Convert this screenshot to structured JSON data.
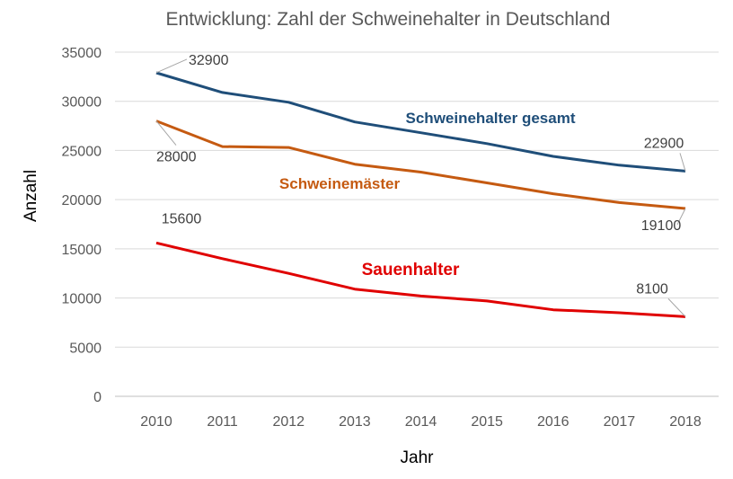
{
  "chart_data": {
    "type": "line",
    "title": "Entwicklung: Zahl der Schweinehalter in Deutschland",
    "xlabel": "Jahr",
    "ylabel": "Anzahl",
    "categories": [
      "2010",
      "2011",
      "2012",
      "2013",
      "2014",
      "2015",
      "2016",
      "2017",
      "2018"
    ],
    "ylim": [
      0,
      35000
    ],
    "yticks": [
      0,
      5000,
      10000,
      15000,
      20000,
      25000,
      30000,
      35000
    ],
    "grid": true,
    "series": [
      {
        "name": "Schweinehalter gesamt",
        "color": "#1F4E79",
        "values": [
          32900,
          30900,
          29900,
          27900,
          26800,
          25700,
          24400,
          23500,
          22900
        ],
        "labels": [
          {
            "index": 0,
            "text": "32900"
          },
          {
            "index": 8,
            "text": "22900"
          }
        ]
      },
      {
        "name": "Schweinemäster",
        "color": "#C55A11",
        "values": [
          28000,
          25400,
          25300,
          23600,
          22800,
          21700,
          20600,
          19700,
          19100
        ],
        "labels": [
          {
            "index": 0,
            "text": "28000"
          },
          {
            "index": 8,
            "text": "19100"
          }
        ]
      },
      {
        "name": "Sauenhalter",
        "color": "#E00000",
        "values": [
          15600,
          14000,
          12500,
          10900,
          10200,
          9700,
          8800,
          8500,
          8100
        ],
        "labels": [
          {
            "index": 0,
            "text": "15600"
          },
          {
            "index": 8,
            "text": "8100"
          }
        ]
      }
    ]
  }
}
